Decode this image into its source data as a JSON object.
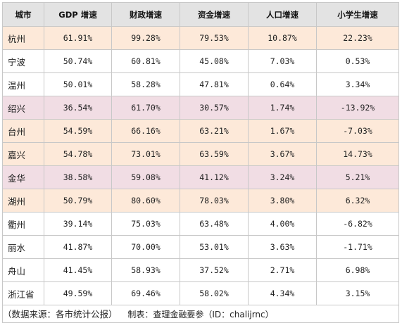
{
  "table": {
    "headers": [
      "城市",
      "GDP 增速",
      "财政增速",
      "资金增速",
      "人口增速",
      "小学生增速"
    ],
    "rows": [
      {
        "city": "杭州",
        "values": [
          "61.91%",
          "99.28%",
          "79.53%",
          "10.87%",
          "22.23%"
        ],
        "shade": "peach"
      },
      {
        "city": "宁波",
        "values": [
          "50.74%",
          "60.81%",
          "45.08%",
          "7.03%",
          "0.53%"
        ],
        "shade": "white"
      },
      {
        "city": "温州",
        "values": [
          "50.01%",
          "58.28%",
          "47.81%",
          "0.64%",
          "3.34%"
        ],
        "shade": "white"
      },
      {
        "city": "绍兴",
        "values": [
          "36.54%",
          "61.70%",
          "30.57%",
          "1.74%",
          "-13.92%"
        ],
        "shade": "pink"
      },
      {
        "city": "台州",
        "values": [
          "54.59%",
          "66.16%",
          "63.21%",
          "1.67%",
          "-7.03%"
        ],
        "shade": "peach"
      },
      {
        "city": "嘉兴",
        "values": [
          "54.78%",
          "73.01%",
          "63.59%",
          "3.67%",
          "14.73%"
        ],
        "shade": "peach"
      },
      {
        "city": "金华",
        "values": [
          "38.58%",
          "59.08%",
          "41.12%",
          "3.24%",
          "5.21%"
        ],
        "shade": "pink"
      },
      {
        "city": "湖州",
        "values": [
          "50.79%",
          "80.60%",
          "78.03%",
          "3.80%",
          "6.32%"
        ],
        "shade": "peach"
      },
      {
        "city": "衢州",
        "values": [
          "39.14%",
          "75.03%",
          "63.48%",
          "4.00%",
          "-6.82%"
        ],
        "shade": "white"
      },
      {
        "city": "丽水",
        "values": [
          "41.87%",
          "70.00%",
          "53.01%",
          "3.63%",
          "-1.71%"
        ],
        "shade": "white"
      },
      {
        "city": "舟山",
        "values": [
          "41.45%",
          "58.93%",
          "37.52%",
          "2.71%",
          "6.98%"
        ],
        "shade": "white"
      },
      {
        "city": "浙江省",
        "values": [
          "49.59%",
          "69.46%",
          "58.02%",
          "4.34%",
          "3.15%"
        ],
        "shade": "white"
      }
    ],
    "caption": "制表：查理金融要参（ID：chalijrnc）"
  },
  "source_note": "（数据来源：各市统计公报）",
  "colors": {
    "header_bg": "#e3e3e3",
    "peach": "#fde9d9",
    "pink": "#f1dde4",
    "border": "#c8c8c8"
  }
}
